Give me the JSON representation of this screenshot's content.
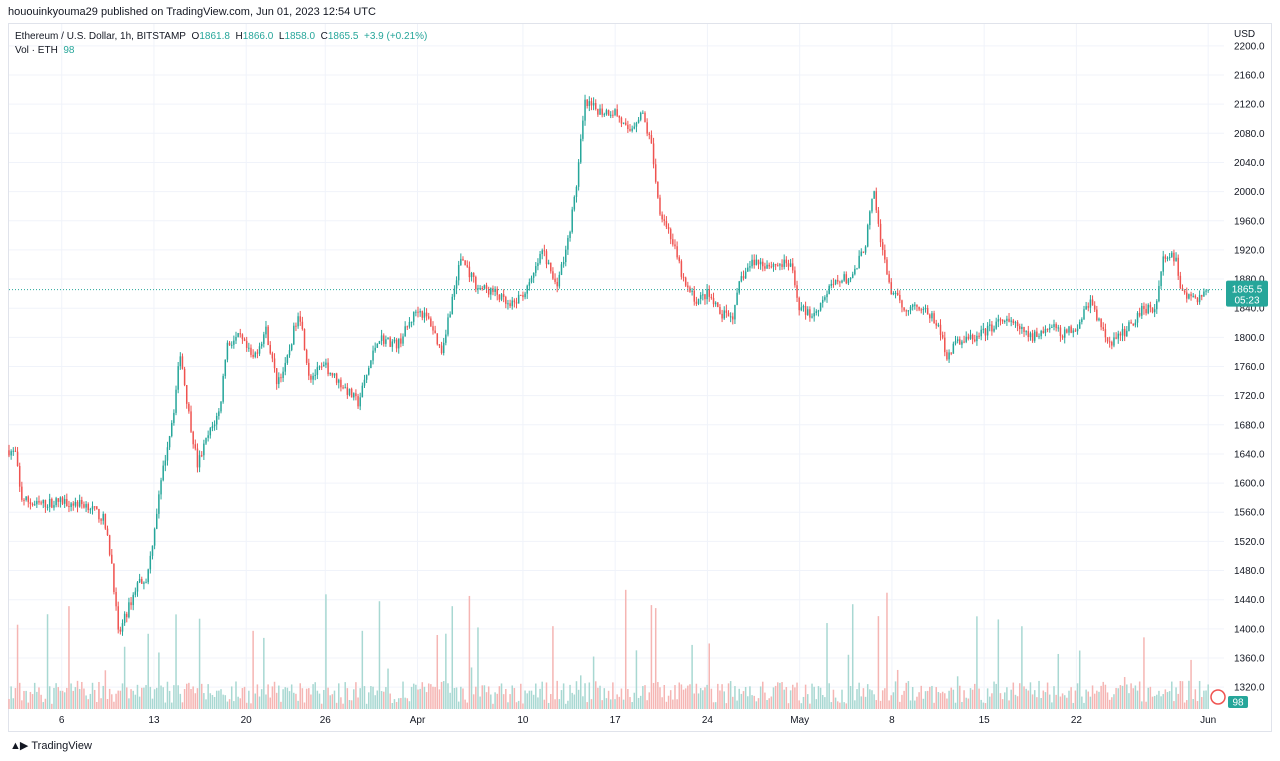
{
  "publisher_line": "hououinkyouma29 published on TradingView.com, Jun 01, 2023 12:54 UTC",
  "legend": {
    "symbol": "Ethereum / U.S. Dollar, 1h, BITSTAMP",
    "o_label": "O",
    "o_value": "1861.8",
    "h_label": "H",
    "h_value": "1866.0",
    "l_label": "L",
    "l_value": "1858.0",
    "c_label": "C",
    "c_value": "1865.5",
    "change": "+3.9 (+0.21%)",
    "vol_label": "Vol · ETH",
    "vol_value": "98"
  },
  "currency": "USD",
  "price_tag": {
    "price": "1865.5",
    "countdown": "05:23"
  },
  "vol_tag": "98",
  "footer_brand": "TradingView",
  "colors": {
    "up": "#26a69a",
    "down": "#ef5350",
    "up_vol": "#a8d8d2",
    "down_vol": "#f5b5b3",
    "grid": "#f0f3fa"
  },
  "chart_data": {
    "type": "candlestick",
    "title": "Ethereum / U.S. Dollar, 1h, BITSTAMP",
    "ylabel": "USD",
    "ylim": [
      1290,
      2230
    ],
    "y_ticks": [
      "2200.0",
      "2160.0",
      "2120.0",
      "2080.0",
      "2040.0",
      "2000.0",
      "1960.0",
      "1920.0",
      "1880.0",
      "1840.0",
      "1800.0",
      "1760.0",
      "1720.0",
      "1680.0",
      "1640.0",
      "1600.0",
      "1560.0",
      "1520.0",
      "1480.0",
      "1440.0",
      "1400.0",
      "1360.0",
      "1320.0"
    ],
    "x_ticks": [
      "6",
      "13",
      "20",
      "26",
      "Apr",
      "10",
      "17",
      "24",
      "May",
      "8",
      "15",
      "22",
      "Jun"
    ],
    "x_tick_positions": [
      4,
      11,
      18,
      24,
      31,
      39,
      46,
      53,
      60,
      67,
      74,
      81,
      91
    ],
    "x_domain_days": [
      0,
      92.2
    ],
    "last_price": 1865.5,
    "volume_ylim": [
      0,
      700
    ],
    "path_keypoints": [
      [
        0,
        1645
      ],
      [
        0.5,
        1640
      ],
      [
        0.9,
        1580
      ],
      [
        2,
        1570
      ],
      [
        4,
        1575
      ],
      [
        6,
        1570
      ],
      [
        7.2,
        1550
      ],
      [
        7.8,
        1490
      ],
      [
        8.3,
        1390
      ],
      [
        9,
        1425
      ],
      [
        9.8,
        1465
      ],
      [
        10.5,
        1470
      ],
      [
        11.2,
        1560
      ],
      [
        11.8,
        1630
      ],
      [
        12.5,
        1700
      ],
      [
        13,
        1780
      ],
      [
        13.6,
        1700
      ],
      [
        14.3,
        1625
      ],
      [
        15,
        1660
      ],
      [
        16,
        1700
      ],
      [
        16.5,
        1790
      ],
      [
        17.5,
        1800
      ],
      [
        18.5,
        1770
      ],
      [
        19.5,
        1810
      ],
      [
        20.3,
        1740
      ],
      [
        21,
        1760
      ],
      [
        22,
        1840
      ],
      [
        22.8,
        1745
      ],
      [
        24,
        1760
      ],
      [
        25,
        1740
      ],
      [
        26.5,
        1710
      ],
      [
        28,
        1800
      ],
      [
        29.5,
        1790
      ],
      [
        31,
        1840
      ],
      [
        32,
        1820
      ],
      [
        32.8,
        1780
      ],
      [
        34.3,
        1910
      ],
      [
        35.5,
        1870
      ],
      [
        37,
        1860
      ],
      [
        38,
        1840
      ],
      [
        39.5,
        1870
      ],
      [
        40.5,
        1920
      ],
      [
        41.5,
        1870
      ],
      [
        42.3,
        1920
      ],
      [
        43,
        2000
      ],
      [
        43.7,
        2120
      ],
      [
        45,
        2110
      ],
      [
        46,
        2110
      ],
      [
        47,
        2080
      ],
      [
        48,
        2110
      ],
      [
        48.8,
        2060
      ],
      [
        49.3,
        1980
      ],
      [
        50.2,
        1940
      ],
      [
        51.3,
        1870
      ],
      [
        52.2,
        1850
      ],
      [
        53,
        1860
      ],
      [
        54,
        1830
      ],
      [
        55,
        1830
      ],
      [
        55.5,
        1880
      ],
      [
        56.5,
        1905
      ],
      [
        57.5,
        1900
      ],
      [
        58.5,
        1900
      ],
      [
        59.3,
        1900
      ],
      [
        60,
        1840
      ],
      [
        61,
        1830
      ],
      [
        62,
        1860
      ],
      [
        63,
        1880
      ],
      [
        64,
        1880
      ],
      [
        65,
        1930
      ],
      [
        65.6,
        2000
      ],
      [
        66.3,
        1915
      ],
      [
        67,
        1860
      ],
      [
        68,
        1840
      ],
      [
        69,
        1845
      ],
      [
        70.4,
        1820
      ],
      [
        71.2,
        1775
      ],
      [
        72,
        1795
      ],
      [
        73.5,
        1800
      ],
      [
        75,
        1820
      ],
      [
        76,
        1820
      ],
      [
        77.5,
        1800
      ],
      [
        79,
        1815
      ],
      [
        80,
        1805
      ],
      [
        81,
        1815
      ],
      [
        82,
        1850
      ],
      [
        83.5,
        1790
      ],
      [
        84.8,
        1810
      ],
      [
        86,
        1840
      ],
      [
        87,
        1840
      ],
      [
        87.6,
        1910
      ],
      [
        88.5,
        1910
      ],
      [
        89,
        1860
      ],
      [
        90,
        1850
      ],
      [
        91,
        1865.5
      ]
    ]
  }
}
